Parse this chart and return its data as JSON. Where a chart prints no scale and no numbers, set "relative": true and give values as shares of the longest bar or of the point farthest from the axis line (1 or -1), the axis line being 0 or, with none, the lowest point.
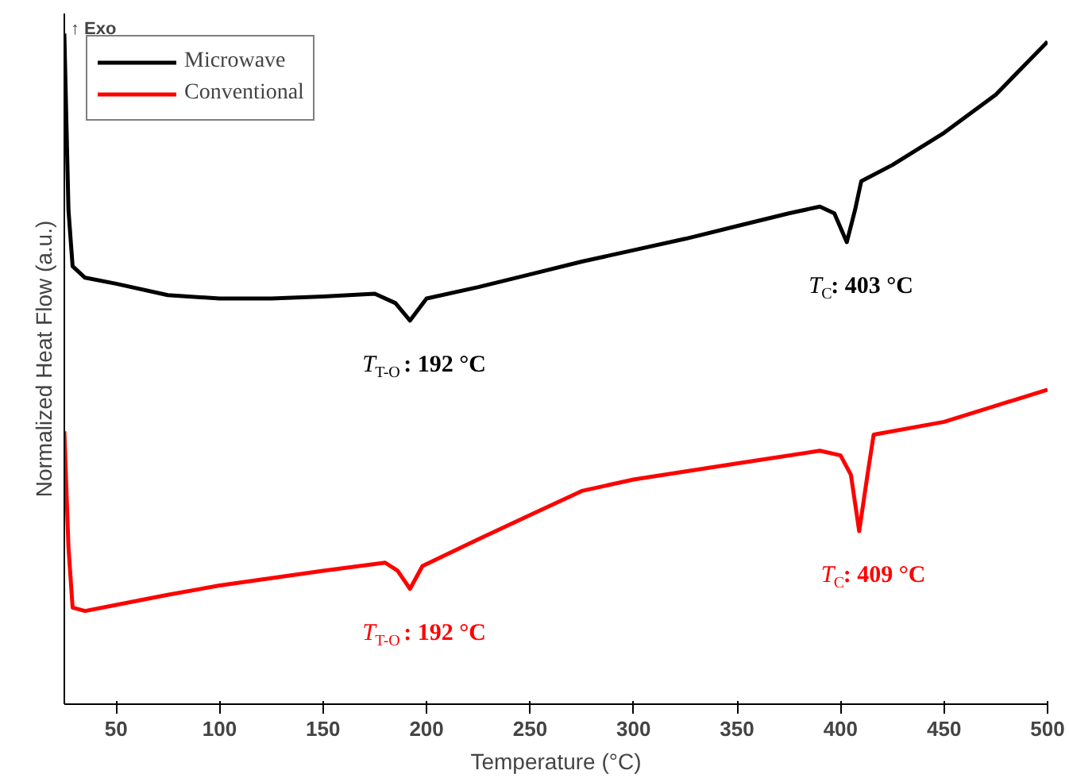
{
  "chart_data": {
    "type": "line",
    "relative": true,
    "xlabel": "Temperature (°C)",
    "ylabel": "Normalized Heat Flow (a.u.)",
    "xlim": [
      25,
      500
    ],
    "xticks": [
      50,
      100,
      150,
      200,
      250,
      300,
      350,
      400,
      450,
      500
    ],
    "grid": false,
    "legend": "top left",
    "line_style": "solid",
    "marker": "none",
    "series": [
      {
        "name": "Microwave",
        "color": "#000000",
        "x": [
          25,
          27,
          29,
          35,
          50,
          75,
          100,
          125,
          150,
          175,
          185,
          192,
          200,
          225,
          250,
          275,
          300,
          325,
          350,
          375,
          390,
          397,
          403,
          407,
          410,
          425,
          450,
          475,
          500
        ],
        "values": [
          1.0,
          0.737,
          0.653,
          0.636,
          0.627,
          0.61,
          0.605,
          0.605,
          0.608,
          0.612,
          0.598,
          0.572,
          0.605,
          0.622,
          0.641,
          0.66,
          0.677,
          0.694,
          0.713,
          0.732,
          0.742,
          0.732,
          0.689,
          0.737,
          0.78,
          0.804,
          0.852,
          0.909,
          0.988
        ]
      },
      {
        "name": "Conventional",
        "color": "#ff0000",
        "x": [
          25,
          27,
          29,
          35,
          50,
          75,
          100,
          150,
          180,
          186,
          192,
          198,
          225,
          250,
          275,
          300,
          350,
          390,
          400,
          405,
          409,
          413,
          416,
          450,
          500
        ],
        "values": [
          0.407,
          0.234,
          0.144,
          0.139,
          0.148,
          0.163,
          0.177,
          0.199,
          0.211,
          0.199,
          0.172,
          0.206,
          0.246,
          0.282,
          0.318,
          0.335,
          0.359,
          0.378,
          0.371,
          0.342,
          0.258,
          0.342,
          0.402,
          0.421,
          0.469
        ]
      }
    ],
    "annotations": [
      "↑ Exo",
      {
        "text": "T$_{T-O}$: 192 °C",
        "x": 192,
        "y": 0.572
      },
      {
        "text": "T$_{C}$: 403 °C",
        "x": 403,
        "y": 0.689
      },
      {
        "text": "T$_{T-O}$: 192 °C",
        "x": 192,
        "y": 0.172
      },
      {
        "text": "T$_{C}$: 409 °C",
        "x": 409,
        "y": 0.258
      }
    ]
  }
}
